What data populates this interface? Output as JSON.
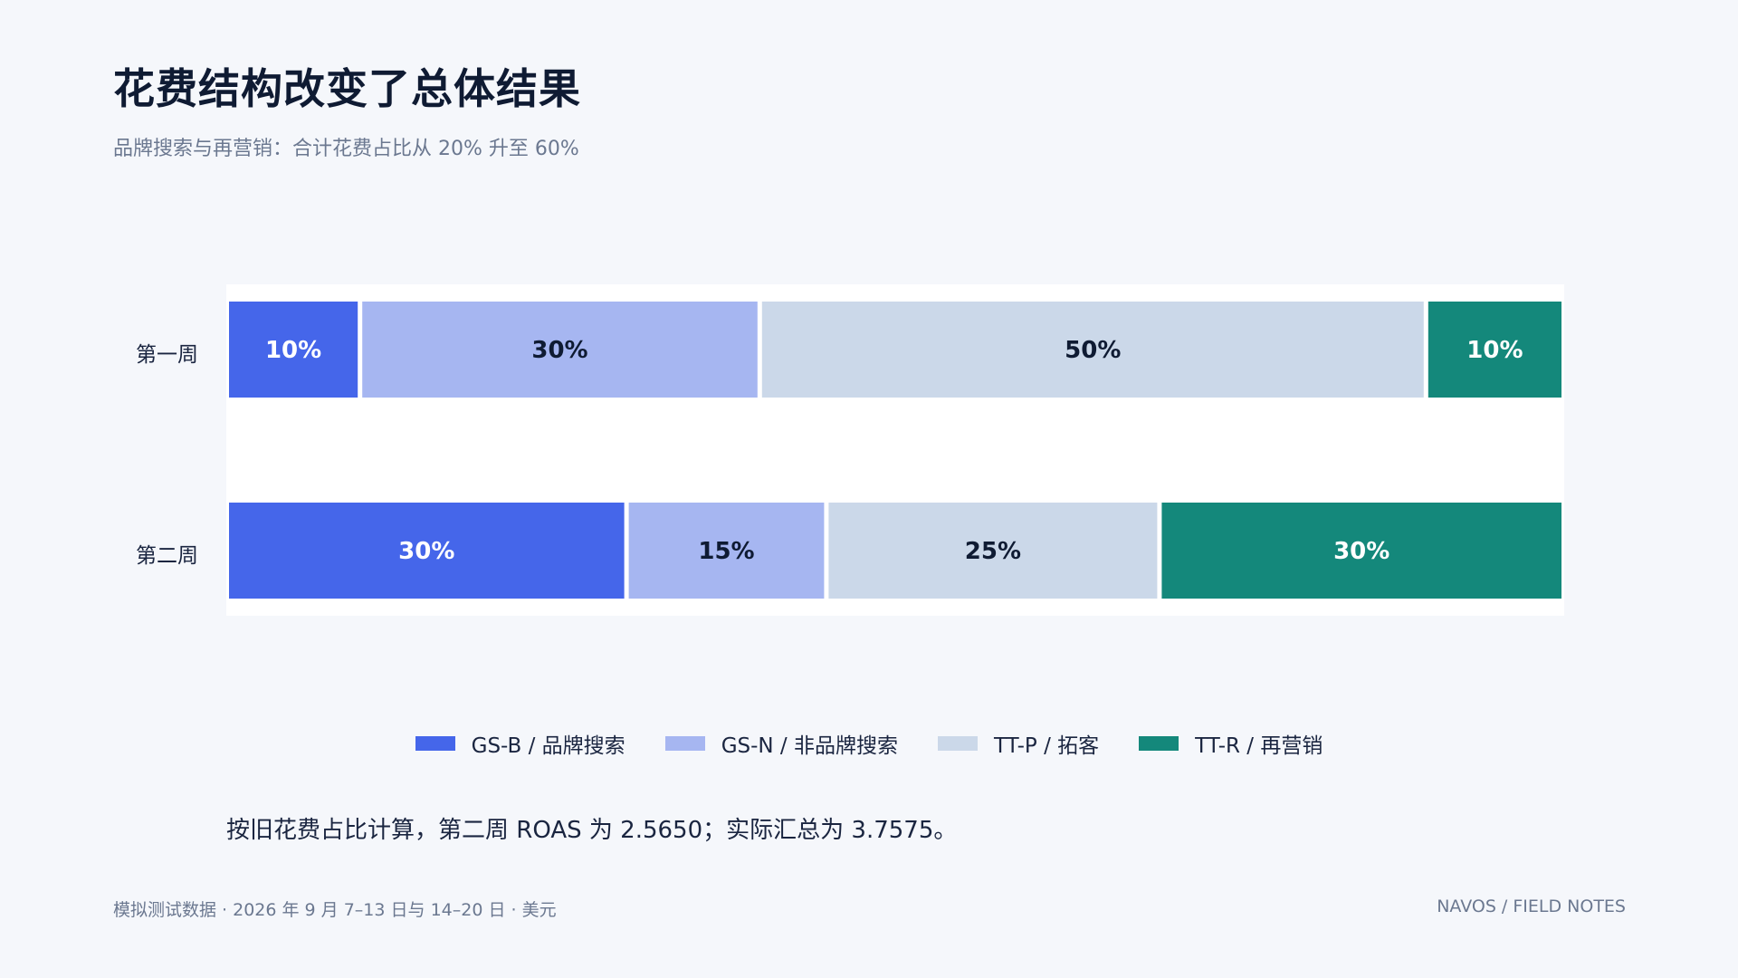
{
  "title": "花费结构改变了总体结果",
  "subtitle": "品牌搜索与再营销：合计花费占比从 20% 升至 60%",
  "note": "按旧花费占比计算，第二周 ROAS 为 2.5650；实际汇总为 3.7575。",
  "footer": {
    "left": "模拟测试数据 · 2026 年 9 月 7–13 日与 14–20 日 · 美元",
    "right": "NAVOS / FIELD NOTES"
  },
  "colors": {
    "gs_b": "#4566ea",
    "gs_n": "#a6b6f1",
    "tt_p": "#cbd8e9",
    "tt_r": "#14887b"
  },
  "chart_data": {
    "type": "bar",
    "orientation": "horizontal",
    "stacked": true,
    "normalized": true,
    "categories": [
      "第一周",
      "第二周"
    ],
    "series": [
      {
        "name": "GS-B / 品牌搜索",
        "values": [
          10,
          30
        ],
        "color": "#4566ea",
        "label_color": "#ffffff"
      },
      {
        "name": "GS-N / 非品牌搜索",
        "values": [
          30,
          15
        ],
        "color": "#a6b6f1",
        "label_color": "#0f1b33"
      },
      {
        "name": "TT-P / 拓客",
        "values": [
          50,
          25
        ],
        "color": "#cbd8e9",
        "label_color": "#0f1b33"
      },
      {
        "name": "TT-R / 再营销",
        "values": [
          10,
          30
        ],
        "color": "#14887b",
        "label_color": "#ffffff"
      }
    ],
    "value_suffix": "%",
    "xlim": [
      0,
      100
    ],
    "legend": "bottom",
    "grid": false
  }
}
